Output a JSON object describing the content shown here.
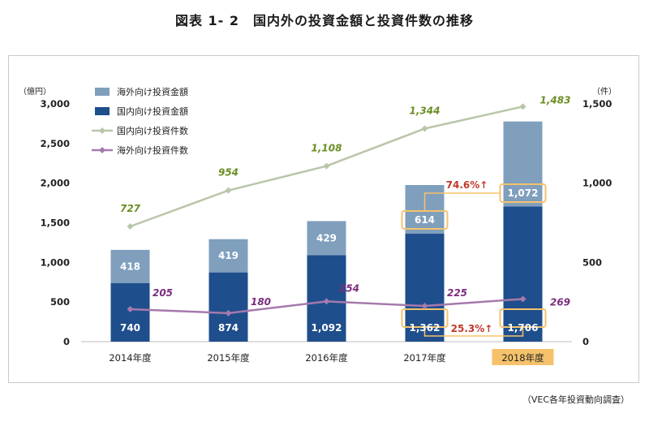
{
  "title": "図表 1- 2　国内外の投資金額と投資件数の推移",
  "source": "（VEC各年投資動向調査）",
  "colors": {
    "overseas_amount": "#7f9fbd",
    "domestic_amount": "#1f4e8c",
    "domestic_count": "#b9c6a8",
    "overseas_count": "#a57aac",
    "domestic_count_label": "#6b8e23",
    "overseas_count_label": "#7b2d7f",
    "highlight_box": "#f5c26b",
    "growth_text": "#c0392b"
  },
  "chart_data": {
    "type": "bar",
    "categories": [
      "2014年度",
      "2015年度",
      "2016年度",
      "2017年度",
      "2018年度"
    ],
    "highlight_category": "2018年度",
    "left_axis": {
      "unit": "（億円）",
      "ylim": [
        0,
        3000
      ],
      "ticks": [
        "0",
        "500",
        "1,000",
        "1,500",
        "2,000",
        "2,500",
        "3,000"
      ]
    },
    "right_axis": {
      "unit": "（件）",
      "ylim": [
        0,
        1500
      ],
      "ticks": [
        "0",
        "500",
        "1,000",
        "1,500"
      ]
    },
    "series": [
      {
        "name": "海外向け投資金額",
        "kind": "stacked-bar",
        "axis": "left",
        "values": [
          418,
          419,
          429,
          614,
          1072
        ],
        "labels": [
          "418",
          "419",
          "429",
          "614",
          "1,072"
        ]
      },
      {
        "name": "国内向け投資金額",
        "kind": "stacked-bar",
        "axis": "left",
        "values": [
          740,
          874,
          1092,
          1362,
          1706
        ],
        "labels": [
          "740",
          "874",
          "1,092",
          "1,362",
          "1,706"
        ]
      },
      {
        "name": "国内向け投資件数",
        "kind": "line",
        "axis": "right",
        "values": [
          727,
          954,
          1108,
          1344,
          1483
        ],
        "labels": [
          "727",
          "954",
          "1,108",
          "1,344",
          "1,483"
        ]
      },
      {
        "name": "海外向け投資件数",
        "kind": "line",
        "axis": "right",
        "values": [
          205,
          180,
          254,
          225,
          269
        ],
        "labels": [
          "205",
          "180",
          "254",
          "225",
          "269"
        ]
      }
    ],
    "annotations": [
      {
        "text": "74.6%↑",
        "from": "2017年度",
        "to": "2018年度",
        "series": "海外向け投資金額"
      },
      {
        "text": "25.3%↑",
        "from": "2017年度",
        "to": "2018年度",
        "series": "国内向け投資金額"
      }
    ],
    "legend": "top-left",
    "grid": false
  }
}
